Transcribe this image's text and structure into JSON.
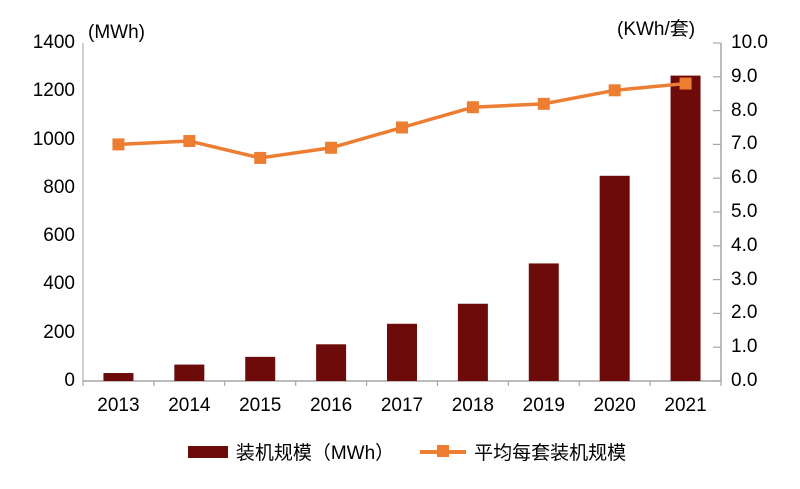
{
  "chart": {
    "left_unit_label": "(MWh)",
    "right_unit_label": "(KWh/套)",
    "legend": [
      {
        "label": "装机规模（MWh）",
        "type": "bar",
        "color": "#6D0B0B"
      },
      {
        "label": "平均每套装机规模",
        "type": "line",
        "color": "#ED7D31"
      }
    ]
  },
  "chart_data": {
    "type": "combo",
    "title": "",
    "categories": [
      "2013",
      "2014",
      "2015",
      "2016",
      "2017",
      "2018",
      "2019",
      "2020",
      "2021"
    ],
    "series": [
      {
        "name": "装机规模（MWh）",
        "type": "bar",
        "axis": "left",
        "color": "#6D0B0B",
        "values": [
          33,
          68,
          100,
          152,
          237,
          320,
          487,
          850,
          1265
        ]
      },
      {
        "name": "平均每套装机规模",
        "type": "line",
        "axis": "right",
        "color": "#ED7D31",
        "values": [
          7.0,
          7.1,
          6.6,
          6.9,
          7.5,
          8.1,
          8.2,
          8.6,
          8.8
        ]
      }
    ],
    "left_axis": {
      "title": "(MWh)",
      "min": 0,
      "max": 1400,
      "step": 200,
      "tick_labels": [
        "0",
        "200",
        "400",
        "600",
        "800",
        "1000",
        "1200",
        "1400"
      ]
    },
    "right_axis": {
      "title": "(KWh/套)",
      "min": 0,
      "max": 10,
      "step": 1,
      "tick_labels": [
        "0.0",
        "1.0",
        "2.0",
        "3.0",
        "4.0",
        "5.0",
        "6.0",
        "7.0",
        "8.0",
        "9.0",
        "10.0"
      ]
    },
    "grid": false,
    "legend_position": "bottom",
    "axis_color": "#A6A6A6"
  }
}
